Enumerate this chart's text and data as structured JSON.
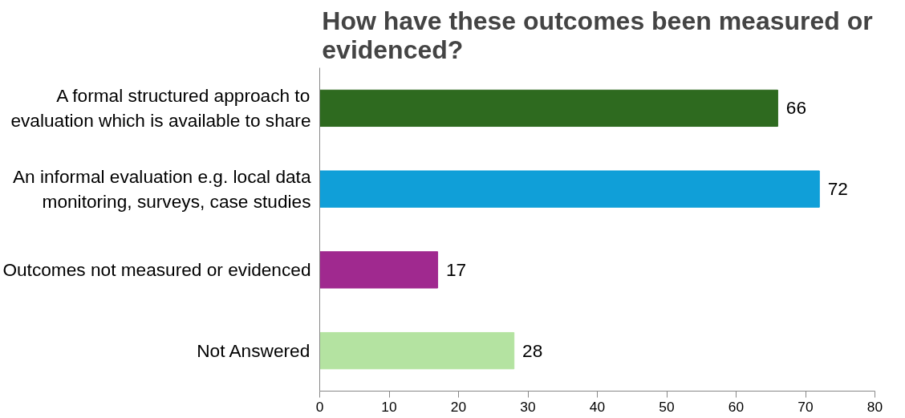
{
  "chart_data": {
    "type": "bar",
    "orientation": "horizontal",
    "title": "How have these outcomes been measured or evidenced?",
    "categories": [
      "A formal structured approach to evaluation which is available to share",
      "An informal evaluation e.g. local data monitoring, surveys, case studies",
      "Outcomes not measured or evidenced",
      "Not Answered"
    ],
    "values": [
      66,
      72,
      17,
      28
    ],
    "colors": [
      "#2e6a1f",
      "#109fd8",
      "#a0298f",
      "#b4e3a1"
    ],
    "xlim": [
      0,
      80
    ],
    "xticks": [
      0,
      10,
      20,
      30,
      40,
      50,
      60,
      70,
      80
    ],
    "grid": false,
    "data_labels": true
  }
}
